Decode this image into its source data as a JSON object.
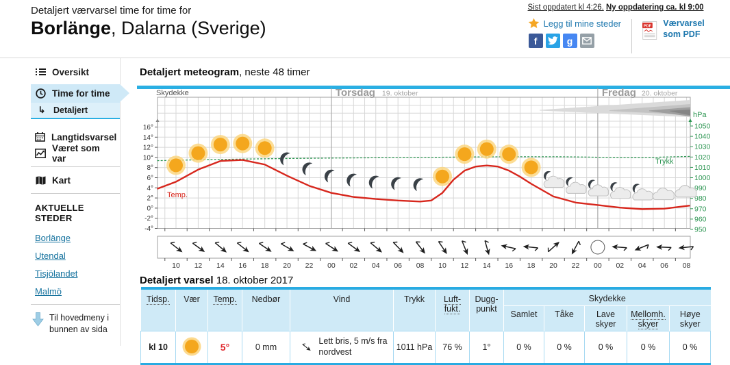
{
  "header": {
    "subtitle": "Detaljert værvarsel time for time for",
    "title_bold": "Borlänge",
    "title_rest": ", Dalarna (Sverige)",
    "updated": "Sist oppdatert kl 4:26.",
    "next_update": "Ny oppdatering ca. kl 9:00",
    "add_to_places": "Legg til mine steder",
    "social": [
      "facebook",
      "twitter",
      "google-plus",
      "email"
    ],
    "facebook_letter": "f",
    "google_letter": "g",
    "pdf_tag": "PDF",
    "pdf_label": "Værvarsel som PDF"
  },
  "sidebar": {
    "items": [
      {
        "label": "Oversikt",
        "icon": "list-icon"
      },
      {
        "label": "Time for time",
        "icon": "clock-icon",
        "selected": true
      },
      {
        "label": "Detaljert",
        "icon": "sub-arrow-icon",
        "sub": true
      },
      {
        "label": "Langtidsvarsel",
        "icon": "calendar-icon"
      },
      {
        "label": "Været som var",
        "icon": "history-chart-icon"
      },
      {
        "label": "Kart",
        "icon": "map-icon"
      }
    ],
    "places_heading": "AKTUELLE STEDER",
    "places": [
      "Borlänge",
      "Utendal",
      "Tisjölandet",
      "Malmö"
    ],
    "to_main_menu": "Til hovedmeny i bunnen av sida"
  },
  "meteogram": {
    "heading_bold": "Detaljert meteogram",
    "heading_rest": ", neste 48 timer",
    "cloud_label": "Skydekke",
    "temp_label": "Temp.",
    "pressure_label": "Trykk",
    "pressure_unit": "hPa",
    "day1": {
      "name": "Torsdag",
      "date": "19. oktober"
    },
    "day2": {
      "name": "Fredag",
      "date": "20. oktober"
    }
  },
  "chart_data": {
    "type": "line",
    "title": "Detaljert meteogram, neste 48 timer",
    "hours_span": 48,
    "x_tick_labels": [
      "10",
      "12",
      "14",
      "16",
      "18",
      "20",
      "22",
      "00",
      "02",
      "04",
      "06",
      "08",
      "10",
      "12",
      "14",
      "16",
      "18",
      "20",
      "22",
      "00",
      "02",
      "04",
      "06",
      "08"
    ],
    "day_boundaries_hours": [
      14,
      38
    ],
    "temp_axis": {
      "min": -4,
      "max": 16,
      "step": 2,
      "suffix": "°"
    },
    "pressure_axis": {
      "min": 950,
      "max": 1050,
      "step": 10,
      "unit": "hPa"
    },
    "temperature_series": {
      "name": "Temp.",
      "color": "#d7271d",
      "x_hours": [
        -1.7,
        0,
        2,
        4,
        6,
        8,
        10,
        12,
        14,
        16,
        18,
        20,
        22,
        23,
        24,
        25,
        26,
        27,
        28,
        29,
        30,
        31,
        32,
        34,
        36,
        38,
        40,
        42,
        44,
        46.3
      ],
      "values": [
        3.8,
        5.2,
        7.6,
        9.3,
        9.5,
        8.6,
        6.4,
        4.4,
        3.0,
        2.2,
        1.8,
        1.5,
        1.3,
        1.5,
        3.0,
        5.6,
        7.4,
        8.2,
        8.4,
        8.2,
        7.4,
        6.2,
        4.8,
        2.3,
        1.1,
        0.6,
        0.1,
        -0.2,
        -0.1,
        0.5
      ]
    },
    "pressure_series": {
      "name": "Trykk",
      "color": "#2e9653",
      "x_hours": [
        -1.7,
        2,
        6,
        10,
        14,
        18,
        22,
        26,
        30,
        34,
        36,
        38,
        40,
        42,
        44,
        46.3
      ],
      "values": [
        1016.5,
        1017.3,
        1018,
        1018.6,
        1019,
        1019.3,
        1019.6,
        1020,
        1020.3,
        1020.3,
        1020.1,
        1019.8,
        1019.4,
        1019.3,
        1020,
        1020.6
      ]
    },
    "weather_icons": [
      "sun",
      "sun",
      "sun",
      "sun",
      "sun",
      "moon",
      "moon",
      "moon",
      "moon",
      "moon",
      "moon",
      "moon",
      "sun",
      "sun",
      "sun",
      "sun",
      "sun",
      "moon-cloud",
      "moon-cloud",
      "moon-cloud",
      "moon-cloud",
      "moon-cloud",
      "cloud",
      "cloud"
    ],
    "wind_arrows": [
      38,
      36,
      40,
      38,
      34,
      30,
      28,
      33,
      36,
      40,
      46,
      52,
      56,
      68,
      74,
      192,
      186,
      318,
      118,
      "calm",
      184,
      158,
      182,
      174
    ],
    "cloud_band_layers": [
      {
        "color": "#dadada",
        "points": [
          [
            588,
            35.5
          ],
          [
            808,
            21
          ],
          [
            808,
            46
          ],
          [
            588,
            36.5
          ]
        ]
      },
      {
        "color": "#c3c3c3",
        "points": [
          [
            690,
            36
          ],
          [
            808,
            27
          ],
          [
            808,
            43
          ],
          [
            690,
            37
          ]
        ]
      },
      {
        "color": "#9e9e9e",
        "points": [
          [
            748,
            36.4
          ],
          [
            808,
            31.5
          ],
          [
            808,
            45
          ],
          [
            748,
            37.2
          ]
        ]
      },
      {
        "color": "#858585",
        "points": [
          [
            778,
            36.8
          ],
          [
            808,
            35
          ],
          [
            808,
            43.5
          ],
          [
            778,
            37.4
          ]
        ]
      }
    ]
  },
  "forecast_table": {
    "heading_bold": "Detaljert varsel",
    "heading_rest": " 18. oktober 2017",
    "columns": [
      "Tidsp.",
      "Vær",
      "Temp.",
      "Nedbør",
      "Vind",
      "Trykk",
      "Luft-fukt.",
      "Dugg-punkt"
    ],
    "skydekke_header": "Skydekke",
    "skydekke_columns": [
      "Samlet",
      "Tåke",
      "Lave skyer",
      "Mellomh. skyer",
      "Høye skyer"
    ],
    "rows": [
      {
        "time": "kl 10",
        "weather": "sun",
        "temp": "5°",
        "precip": "0 mm",
        "wind": "Lett bris, 5 m/s fra nordvest",
        "pressure": "1011 hPa",
        "humidity": "76 %",
        "dew_point": "1°",
        "clouds": [
          "0 %",
          "0 %",
          "0 %",
          "0 %",
          "0 %"
        ]
      }
    ]
  },
  "colors": {
    "accent_cyan": "#2aafe3",
    "table_border_cyan": "#29abe2",
    "link_blue": "#15729e",
    "temp_red": "#d7271d",
    "pressure_green": "#2e9653",
    "selected_bg": "#cfe9f7",
    "table_header_bg": "#cfeaf7"
  }
}
